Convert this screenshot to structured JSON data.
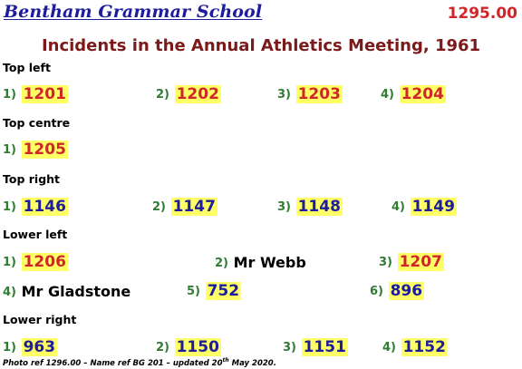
{
  "header": {
    "school": "Bentham Grammar School",
    "ref": "1295.00",
    "title": "Incidents in the Annual Athletics Meeting, 1961"
  },
  "sections": {
    "top_left": {
      "label": "Top left",
      "items": [
        {
          "n": "1)",
          "v": "1201"
        },
        {
          "n": "2)",
          "v": "1202"
        },
        {
          "n": "3)",
          "v": "1203"
        },
        {
          "n": "4)",
          "v": "1204"
        }
      ]
    },
    "top_centre": {
      "label": "Top centre",
      "items": [
        {
          "n": "1)",
          "v": "1205"
        }
      ]
    },
    "top_right": {
      "label": "Top right",
      "items": [
        {
          "n": "1)",
          "v": "1146"
        },
        {
          "n": "2)",
          "v": "1147"
        },
        {
          "n": "3)",
          "v": "1148"
        },
        {
          "n": "4)",
          "v": "1149"
        }
      ]
    },
    "lower_left": {
      "label": "Lower left",
      "items": [
        {
          "n": "1)",
          "v": "1206"
        },
        {
          "n": "2)",
          "v": "Mr Webb"
        },
        {
          "n": "3)",
          "v": "1207"
        },
        {
          "n": "4)",
          "v": "Mr Gladstone"
        },
        {
          "n": "5)",
          "v": "752"
        },
        {
          "n": "6)",
          "v": "896"
        }
      ]
    },
    "lower_right": {
      "label": "Lower right",
      "items": [
        {
          "n": "1)",
          "v": "963"
        },
        {
          "n": "2)",
          "v": "1150"
        },
        {
          "n": "3)",
          "v": "1151"
        },
        {
          "n": "4)",
          "v": "1152"
        }
      ]
    }
  },
  "footer": {
    "text_before": "Photo ref 1296.00 – Name ref BG 201 – updated 20",
    "superscript": "th",
    "text_after": " May 2020."
  },
  "colors": {
    "school_blue": "#1c1c9c",
    "ref_red": "#d0262a",
    "title_maroon": "#7a1a1a",
    "number_green": "#2e7d32",
    "highlight_yellow": "#ffff66"
  }
}
